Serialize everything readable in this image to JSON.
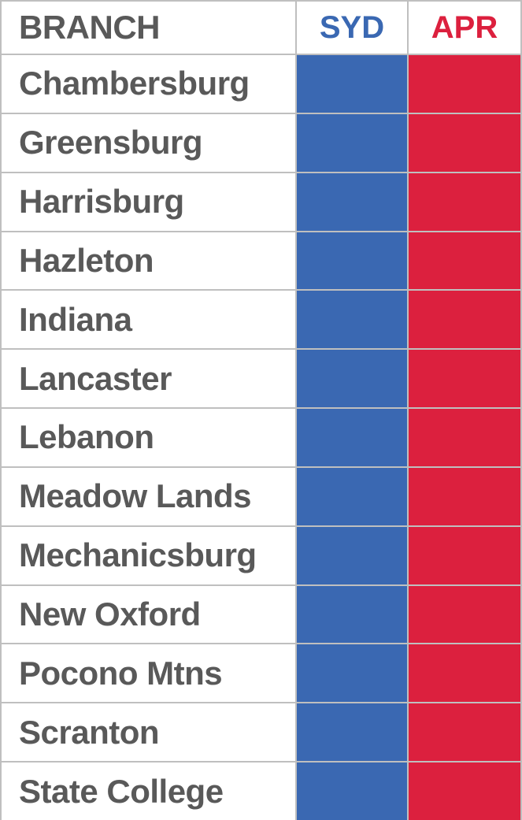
{
  "table": {
    "header": {
      "branch": "BRANCH",
      "syd": "SYD",
      "apr": "APR"
    },
    "rows": [
      {
        "branch": "Chambersburg"
      },
      {
        "branch": "Greensburg"
      },
      {
        "branch": "Harrisburg"
      },
      {
        "branch": "Hazleton"
      },
      {
        "branch": "Indiana"
      },
      {
        "branch": "Lancaster"
      },
      {
        "branch": "Lebanon"
      },
      {
        "branch": "Meadow Lands"
      },
      {
        "branch": "Mechanicsburg"
      },
      {
        "branch": "New Oxford"
      },
      {
        "branch": "Pocono Mtns"
      },
      {
        "branch": "Scranton"
      },
      {
        "branch": "State College"
      }
    ]
  },
  "colors": {
    "syd_fill": "#3A68B2",
    "apr_fill": "#DC203E",
    "syd_header_text": "#3A68B2",
    "apr_header_text": "#DC203E",
    "branch_text": "#595959",
    "grid_border": "#BFBFBF",
    "cell_background": "#FFFFFF"
  },
  "chart_data": {
    "type": "table",
    "title": "",
    "columns": [
      "BRANCH",
      "SYD",
      "APR"
    ],
    "branches": [
      "Chambersburg",
      "Greensburg",
      "Harrisburg",
      "Hazleton",
      "Indiana",
      "Lancaster",
      "Lebanon",
      "Meadow Lands",
      "Mechanicsburg",
      "New Oxford",
      "Pocono Mtns",
      "Scranton",
      "State College"
    ],
    "cell_contents": "SYD and APR cells contain no text; every row shows a solid blue fill under SYD and a solid red fill under APR",
    "syd_cell_fill": "#3A68B2",
    "apr_cell_fill": "#DC203E",
    "layout": "3-column table, 13 data rows, light gray gridlines, header row with white background; last row clipped at bottom edge"
  }
}
